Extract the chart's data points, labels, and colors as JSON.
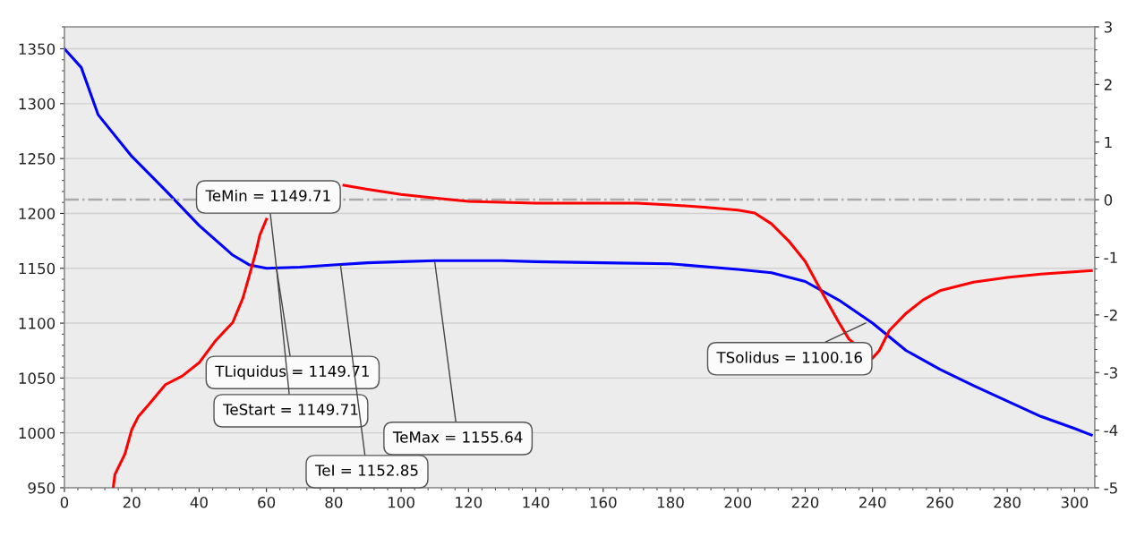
{
  "chart_data": {
    "type": "line",
    "xlim": [
      0,
      306
    ],
    "xticks": [
      0,
      20,
      40,
      60,
      80,
      100,
      120,
      140,
      160,
      180,
      200,
      220,
      240,
      260,
      280,
      300
    ],
    "ylim": [
      950,
      1370
    ],
    "yticks": [
      950,
      1000,
      1050,
      1100,
      1150,
      1200,
      1250,
      1300,
      1350
    ],
    "y2lim": [
      -5,
      3
    ],
    "y2ticks": [
      -5,
      -4,
      -3,
      -2,
      -1,
      0,
      1,
      2,
      3
    ],
    "grid": "y",
    "legend": false,
    "marker": "none",
    "line_style": "solid",
    "series": [
      {
        "color": "#0000ff",
        "x": [
          0,
          5,
          10,
          20,
          30,
          40,
          50,
          55,
          60,
          70,
          80,
          90,
          100,
          110,
          130,
          140,
          160,
          180,
          200,
          210,
          220,
          230,
          240,
          250,
          260,
          270,
          280,
          290,
          300,
          305
        ],
        "values": [
          1350,
          1333,
          1290,
          1252,
          1221,
          1189,
          1162,
          1153,
          1150,
          1151,
          1153,
          1155,
          1156,
          1157,
          1157,
          1156,
          1155,
          1154,
          1149,
          1146,
          1138,
          1121,
          1100,
          1075,
          1058,
          1043,
          1029,
          1015,
          1004,
          998
        ]
      },
      {
        "color": "#ff0000",
        "axis": "y2",
        "x": [
          14.5,
          15,
          18,
          20,
          22,
          25,
          30,
          35,
          40,
          45,
          50,
          53,
          55,
          57,
          58,
          60,
          70,
          83,
          90,
          100,
          110,
          120,
          140,
          170,
          180,
          190,
          200,
          205,
          210,
          215,
          220,
          225,
          230,
          233,
          240,
          242,
          245,
          250,
          255,
          260,
          270,
          280,
          290,
          305
        ],
        "values": [
          -5,
          -4.77,
          -4.41,
          -3.99,
          -3.76,
          -3.56,
          -3.21,
          -3.06,
          -2.83,
          -2.44,
          -2.13,
          -1.71,
          -1.3,
          -0.88,
          -0.62,
          -0.34,
          null,
          0.25,
          0.18,
          0.09,
          0.03,
          -0.03,
          -0.06,
          -0.06,
          -0.09,
          -0.13,
          -0.18,
          -0.23,
          -0.42,
          -0.71,
          -1.07,
          -1.61,
          -2.13,
          -2.42,
          -2.75,
          -2.62,
          -2.27,
          -1.97,
          -1.74,
          -1.58,
          -1.43,
          -1.35,
          -1.29,
          -1.23
        ]
      }
    ],
    "ref_lines": [
      {
        "axis": "y2",
        "value": 0,
        "color": "#aaaaaa",
        "line_style": "dashdot"
      }
    ],
    "annotations": [
      {
        "text": "TeMin = 1149.71",
        "x": 63,
        "y": 1149.71
      },
      {
        "text": "TLiquidus = 1149.71",
        "x": 63,
        "y": 1149.71
      },
      {
        "text": "TeStart = 1149.71",
        "x": 63,
        "y": 1149.71
      },
      {
        "text": "TeI = 1152.85",
        "x": 82,
        "y": 1152.85
      },
      {
        "text": "TeMax = 1155.64",
        "x": 110,
        "y": 1155.64
      },
      {
        "text": "TSolidus = 1100.16",
        "x": 238,
        "y": 1100.16
      }
    ]
  }
}
